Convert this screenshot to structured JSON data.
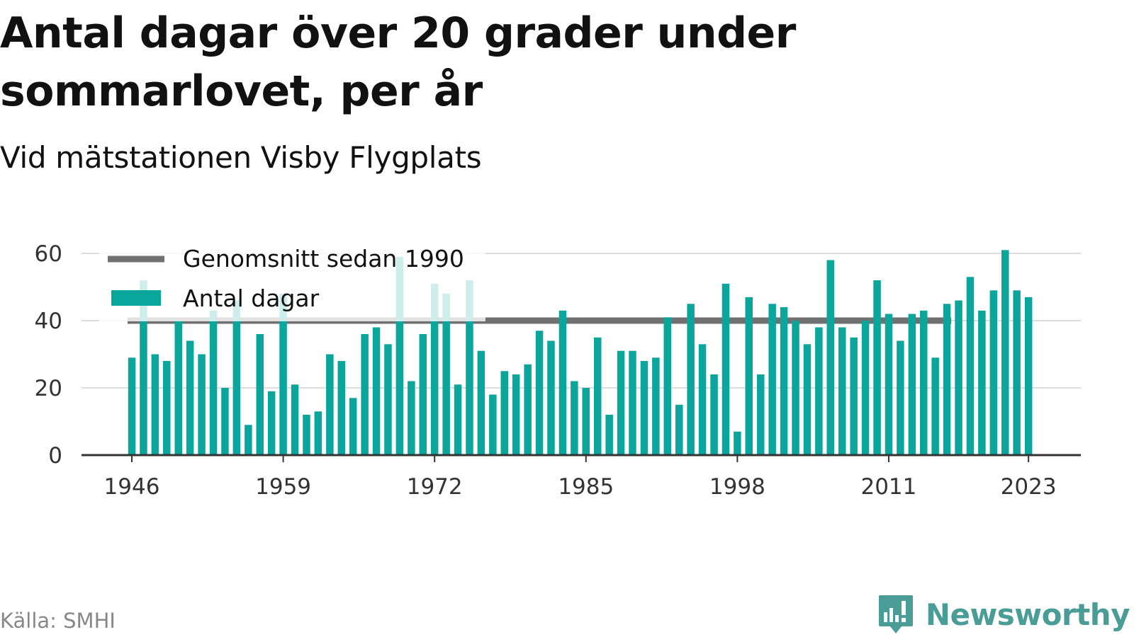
{
  "title": "Antal dagar över 20 grader under sommarlovet, per år",
  "subtitle": "Vid mätstationen Visby Flygplats",
  "source": "Källa: SMHI",
  "brand": {
    "name": "Newsworthy",
    "icon": "newsworthy-logo-icon",
    "color": "#4a9d97"
  },
  "colors": {
    "bars": "#0ba69b",
    "average": "#707070",
    "grid": "#dddddd",
    "axis": "#333333"
  },
  "chart_data": {
    "type": "bar",
    "title": "Antal dagar över 20 grader under sommarlovet, per år",
    "xlabel": "",
    "ylabel": "",
    "ylim": [
      0,
      60
    ],
    "yticks": [
      0,
      20,
      40,
      60
    ],
    "xticks": [
      1946,
      1959,
      1972,
      1985,
      1998,
      2011,
      2023
    ],
    "grid": true,
    "legend": "top-left",
    "legend_entries": [
      "Genomsnitt sedan 1990",
      "Antal dagar"
    ],
    "x_start": 1946,
    "x_end": 2023,
    "series": [
      {
        "name": "Antal dagar",
        "type": "bar",
        "values": [
          29,
          52,
          30,
          28,
          40,
          34,
          30,
          43,
          20,
          46,
          9,
          36,
          19,
          48,
          21,
          12,
          13,
          30,
          28,
          17,
          36,
          38,
          33,
          59,
          22,
          36,
          51,
          48,
          21,
          52,
          31,
          18,
          25,
          24,
          27,
          37,
          34,
          43,
          22,
          20,
          35,
          12,
          31,
          31,
          28,
          29,
          41,
          15,
          45,
          33,
          24,
          51,
          7,
          47,
          24,
          45,
          44,
          40,
          33,
          38,
          58,
          38,
          35,
          40,
          52,
          42,
          34,
          42,
          43,
          29,
          45,
          46,
          53,
          43,
          49,
          61,
          49,
          47
        ]
      },
      {
        "name": "Genomsnitt sedan 1990",
        "type": "line",
        "value": 40,
        "from": 1946,
        "to": 2016
      }
    ]
  }
}
